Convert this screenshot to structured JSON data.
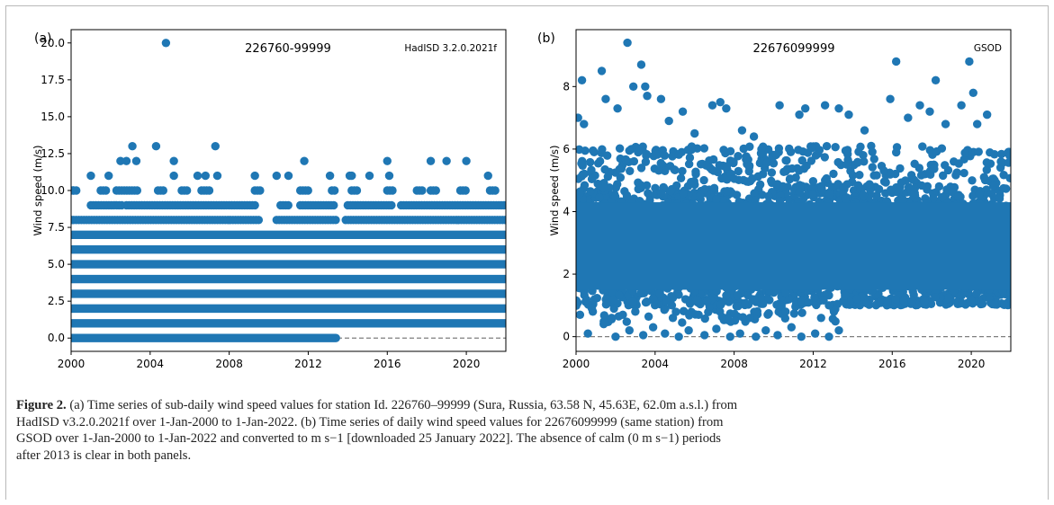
{
  "chart_data": [
    {
      "type": "scatter",
      "panel_label": "(a)",
      "title": "226760-99999",
      "source": "HadISD 3.2.0.2021f",
      "xlabel": "",
      "ylabel": "Wind speed (m/s)",
      "xlim": [
        2000,
        2022
      ],
      "ylim": [
        -0.9,
        20.9
      ],
      "xticks": [
        "2000",
        "2004",
        "2008",
        "2012",
        "2016",
        "2020"
      ],
      "yticks": [
        "0.0",
        "2.5",
        "5.0",
        "7.5",
        "10.0",
        "12.5",
        "15.0",
        "17.5",
        "20.0"
      ],
      "grid": false,
      "color": "#1f77b4",
      "reference_line": {
        "y": 0,
        "style": "dashed",
        "color": "#7f7f7f"
      },
      "dense_bands": [
        {
          "y": 0,
          "x_start": 2000,
          "x_end": 2013.4
        },
        {
          "y": 1,
          "x_start": 2000,
          "x_end": 2022
        },
        {
          "y": 2,
          "x_start": 2000,
          "x_end": 2022
        },
        {
          "y": 3,
          "x_start": 2000,
          "x_end": 2022
        },
        {
          "y": 4,
          "x_start": 2000,
          "x_end": 2022
        },
        {
          "y": 5,
          "x_start": 2000,
          "x_end": 2022
        },
        {
          "y": 6,
          "x_start": 2000,
          "x_end": 2022
        },
        {
          "y": 7,
          "x_start": 2000,
          "x_end": 2022
        }
      ],
      "sparse_rows": [
        {
          "y": 8,
          "segments": [
            [
              2000.0,
              2009.6
            ],
            [
              2010.4,
              2013.4
            ],
            [
              2013.9,
              2022.0
            ]
          ]
        },
        {
          "y": 9,
          "segments": [
            [
              2001.0,
              2002.6
            ],
            [
              2002.8,
              2009.3
            ],
            [
              2010.6,
              2011.1
            ],
            [
              2011.6,
              2013.4
            ],
            [
              2014.0,
              2016.3
            ],
            [
              2016.7,
              2022.0
            ]
          ]
        },
        {
          "y": 10,
          "segments": [
            [
              2000.0,
              2000.3
            ],
            [
              2001.5,
              2001.8
            ],
            [
              2002.3,
              2003.4
            ],
            [
              2004.4,
              2004.7
            ],
            [
              2005.6,
              2005.9
            ],
            [
              2006.6,
              2007.0
            ],
            [
              2009.3,
              2009.6
            ],
            [
              2011.6,
              2012.0
            ],
            [
              2013.2,
              2013.4
            ],
            [
              2014.2,
              2014.5
            ],
            [
              2016.0,
              2016.3
            ],
            [
              2017.5,
              2017.8
            ],
            [
              2018.2,
              2018.5
            ],
            [
              2019.7,
              2020.0
            ],
            [
              2021.2,
              2021.5
            ]
          ]
        }
      ],
      "points": [
        [
          2000.0,
          8
        ],
        [
          2000.1,
          10
        ],
        [
          2001.0,
          11
        ],
        [
          2001.9,
          11
        ],
        [
          2002.5,
          12
        ],
        [
          2002.8,
          12
        ],
        [
          2003.1,
          13
        ],
        [
          2003.3,
          12
        ],
        [
          2004.3,
          13
        ],
        [
          2004.8,
          20
        ],
        [
          2005.2,
          12
        ],
        [
          2005.2,
          11
        ],
        [
          2006.4,
          11
        ],
        [
          2006.8,
          11
        ],
        [
          2007.3,
          13
        ],
        [
          2007.4,
          11
        ],
        [
          2009.3,
          11
        ],
        [
          2010.4,
          11
        ],
        [
          2011.0,
          11
        ],
        [
          2011.8,
          12
        ],
        [
          2013.1,
          11
        ],
        [
          2014.1,
          11
        ],
        [
          2014.2,
          11
        ],
        [
          2015.1,
          11
        ],
        [
          2016.0,
          12
        ],
        [
          2016.1,
          11
        ],
        [
          2018.2,
          12
        ],
        [
          2019.0,
          12
        ],
        [
          2020.0,
          12
        ],
        [
          2021.1,
          11
        ]
      ]
    },
    {
      "type": "scatter",
      "panel_label": "(b)",
      "title": "22676099999",
      "source": "GSOD",
      "xlabel": "",
      "ylabel": "Wind speed (m/s)",
      "xlim": [
        2000,
        2022
      ],
      "ylim": [
        -0.47,
        9.82
      ],
      "xticks": [
        "2000",
        "2004",
        "2008",
        "2012",
        "2016",
        "2020"
      ],
      "yticks": [
        "0",
        "2",
        "4",
        "6",
        "8"
      ],
      "grid": false,
      "color": "#1f77b4",
      "reference_line": {
        "y": 0,
        "style": "dashed",
        "color": "#7f7f7f"
      },
      "dense_band": {
        "y_range": [
          1.0,
          4.8
        ],
        "x_start": 2000,
        "x_end": 2022,
        "lower_edge_before_2013": 0.45,
        "lower_edge_after_2013": 1.0
      },
      "points": [
        [
          2000.3,
          8.2
        ],
        [
          2000.1,
          7.0
        ],
        [
          2000.4,
          6.8
        ],
        [
          2001.3,
          8.5
        ],
        [
          2001.5,
          7.6
        ],
        [
          2002.1,
          7.3
        ],
        [
          2002.6,
          9.4
        ],
        [
          2002.9,
          8.0
        ],
        [
          2003.3,
          8.7
        ],
        [
          2003.5,
          8.0
        ],
        [
          2003.6,
          7.7
        ],
        [
          2004.3,
          7.6
        ],
        [
          2004.7,
          6.9
        ],
        [
          2005.4,
          7.2
        ],
        [
          2006.0,
          6.5
        ],
        [
          2006.9,
          7.4
        ],
        [
          2007.3,
          7.5
        ],
        [
          2007.6,
          7.3
        ],
        [
          2008.4,
          6.6
        ],
        [
          2009.0,
          6.4
        ],
        [
          2010.3,
          7.4
        ],
        [
          2011.3,
          7.1
        ],
        [
          2011.6,
          7.3
        ],
        [
          2012.6,
          7.4
        ],
        [
          2013.3,
          7.3
        ],
        [
          2013.8,
          7.1
        ],
        [
          2014.6,
          6.6
        ],
        [
          2015.9,
          7.6
        ],
        [
          2016.2,
          8.8
        ],
        [
          2016.8,
          7.0
        ],
        [
          2017.4,
          7.4
        ],
        [
          2017.9,
          7.2
        ],
        [
          2018.2,
          8.2
        ],
        [
          2018.7,
          6.8
        ],
        [
          2019.5,
          7.4
        ],
        [
          2019.9,
          8.8
        ],
        [
          2020.1,
          7.8
        ],
        [
          2020.3,
          6.8
        ],
        [
          2020.8,
          7.1
        ],
        [
          2021.5,
          5.6
        ],
        [
          2000.2,
          0.7
        ],
        [
          2000.6,
          0.1
        ],
        [
          2001.4,
          0.4
        ],
        [
          2002.0,
          0.0
        ],
        [
          2002.7,
          0.2
        ],
        [
          2003.4,
          0.05
        ],
        [
          2003.9,
          0.3
        ],
        [
          2004.5,
          0.1
        ],
        [
          2005.2,
          0.0
        ],
        [
          2005.7,
          0.2
        ],
        [
          2006.5,
          0.05
        ],
        [
          2007.1,
          0.25
        ],
        [
          2007.8,
          0.0
        ],
        [
          2008.3,
          0.1
        ],
        [
          2009.1,
          0.0
        ],
        [
          2009.6,
          0.2
        ],
        [
          2010.2,
          0.05
        ],
        [
          2010.9,
          0.3
        ],
        [
          2011.4,
          0.0
        ],
        [
          2012.1,
          0.1
        ],
        [
          2012.8,
          0.0
        ],
        [
          2013.3,
          0.2
        ],
        [
          2000.8,
          0.9
        ],
        [
          2001.8,
          0.6
        ],
        [
          2003.0,
          0.8
        ],
        [
          2004.9,
          0.6
        ],
        [
          2006.2,
          0.7
        ],
        [
          2008.8,
          0.6
        ],
        [
          2010.6,
          0.8
        ],
        [
          2012.4,
          0.6
        ]
      ]
    }
  ],
  "caption": {
    "figure_label": "Figure 2.",
    "lines": [
      "(a) Time series of sub-daily wind speed values for station Id. 226760–99999 (Sura, Russia, 63.58 N, 45.63E, 62.0m a.s.l.) from",
      "HadISD v3.2.0.2021f over 1-Jan-2000 to 1-Jan-2022. (b) Time series of daily wind speed values for 22676099999 (same station) from",
      "GSOD over 1-Jan-2000 to 1-Jan-2022 and converted to m s−1 [downloaded 25 January 2022]. The absence of calm (0 m s−1) periods",
      "after 2013 is clear in both panels."
    ]
  }
}
